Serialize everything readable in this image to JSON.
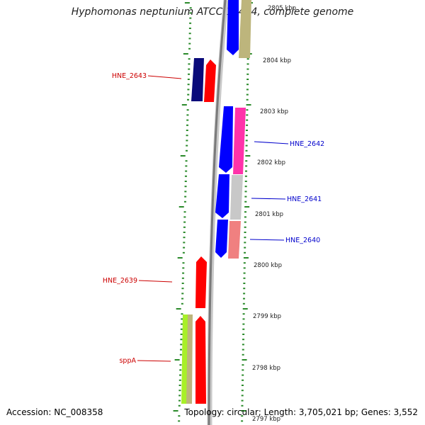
{
  "title": "Hyphomonas neptunium ATCC 15444, complete genome",
  "footer": {
    "accession": "Accession: NC_008358",
    "stats": "Topology: circular; Length: 3,705,021 bp; Genes: 3,552"
  },
  "colors": {
    "background": "#ffffff",
    "backbone": "#888888",
    "tick": "#2a8a2a",
    "gene_red": "#ff0000",
    "gene_blue": "#0000ff",
    "gene_navy": "#0a0a7a",
    "gene_magenta": "#ff33aa",
    "gene_grey": "#c8c8c8",
    "gene_pink": "#f08080",
    "gene_olive": "#bdb57c",
    "gene_lime": "#a8f028",
    "label_red": "#cc0000",
    "label_blue": "#0000cc"
  },
  "scale_labels": [
    "2805 kbp",
    "2804 kbp",
    "2803 kbp",
    "2802 kbp",
    "2801 kbp",
    "2800 kbp",
    "2799 kbp",
    "2798 kbp",
    "2797 kbp"
  ],
  "gene_labels": [
    {
      "id": "HNE_2643",
      "strand": "left"
    },
    {
      "id": "HNE_2642",
      "strand": "right"
    },
    {
      "id": "HNE_2641",
      "strand": "right"
    },
    {
      "id": "HNE_2640",
      "strand": "right"
    },
    {
      "id": "HNE_2639",
      "strand": "left"
    },
    {
      "id": "sppA",
      "strand": "left"
    }
  ]
}
